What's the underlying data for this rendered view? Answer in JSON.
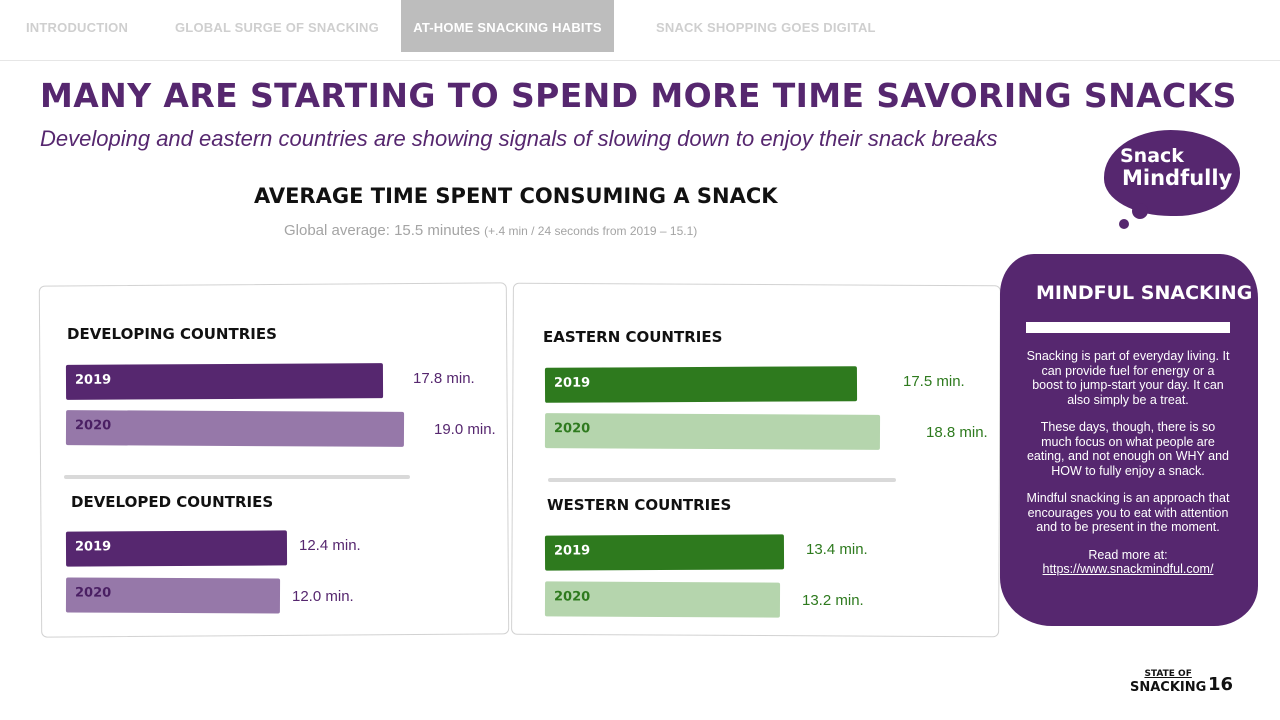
{
  "nav": {
    "tabs": [
      {
        "label": "INTRODUCTION"
      },
      {
        "label": "GLOBAL SURGE OF SNACKING"
      },
      {
        "label": "AT-HOME SNACKING HABITS"
      },
      {
        "label": "SNACK SHOPPING GOES DIGITAL"
      }
    ],
    "active_tab": "AT-HOME SNACKING HABITS"
  },
  "page": {
    "title": "MANY ARE STARTING TO SPEND MORE TIME SAVORING SNACKS",
    "subtitle": "Developing and eastern countries are showing signals of slowing down to enjoy their snack breaks"
  },
  "chart_data": {
    "type": "bar",
    "title": "AVERAGE TIME SPENT CONSUMING A SNACK",
    "subtitle_main": "Global average: 15.5 minutes",
    "subtitle_note": "(+.4 min / 24 seconds from 2019 – 15.1)",
    "unit": "min.",
    "groups": [
      {
        "name": "DEVELOPING COUNTRIES",
        "series": [
          {
            "year": "2019",
            "value": 17.8,
            "label": "17.8 min."
          },
          {
            "year": "2020",
            "value": 19.0,
            "label": "19.0 min."
          }
        ]
      },
      {
        "name": "DEVELOPED COUNTRIES",
        "series": [
          {
            "year": "2019",
            "value": 12.4,
            "label": "12.4 min."
          },
          {
            "year": "2020",
            "value": 12.0,
            "label": "12.0 min."
          }
        ]
      },
      {
        "name": "EASTERN COUNTRIES",
        "series": [
          {
            "year": "2019",
            "value": 17.5,
            "label": "17.5 min."
          },
          {
            "year": "2020",
            "value": 18.8,
            "label": "18.8 min."
          }
        ]
      },
      {
        "name": "WESTERN COUNTRIES",
        "series": [
          {
            "year": "2019",
            "value": 13.4,
            "label": "13.4 min."
          },
          {
            "year": "2020",
            "value": 13.2,
            "label": "13.2 min."
          }
        ]
      }
    ],
    "colors": {
      "purple_2019": "#56276f",
      "purple_2020": "#9678a9",
      "green_2019": "#2e7a1e",
      "green_2020": "#b5d5ad"
    }
  },
  "logo": {
    "line1": "Snack",
    "line2": "Mindfully"
  },
  "sidebar": {
    "title": "MINDFUL SNACKING",
    "paragraphs": [
      "Snacking is part of everyday living. It can provide fuel for energy or a boost to jump-start your day. It can also simply be a treat.",
      "These days, though, there is so much focus on what people are eating, and not enough on WHY and HOW to fully enjoy a snack.",
      "Mindful snacking is an approach that encourages you to eat with attention and to be present in the moment."
    ],
    "read_more": "Read more at:",
    "link": "https://www.snackmindful.com/"
  },
  "footer": {
    "brand_line1": "STATE OF",
    "brand_line2": "SNACKING",
    "page_number": "16"
  },
  "colors": {
    "brand_purple": "#56276f",
    "nav_active_bg": "#bdbdbd",
    "nav_inactive": "#cfcfcf"
  }
}
